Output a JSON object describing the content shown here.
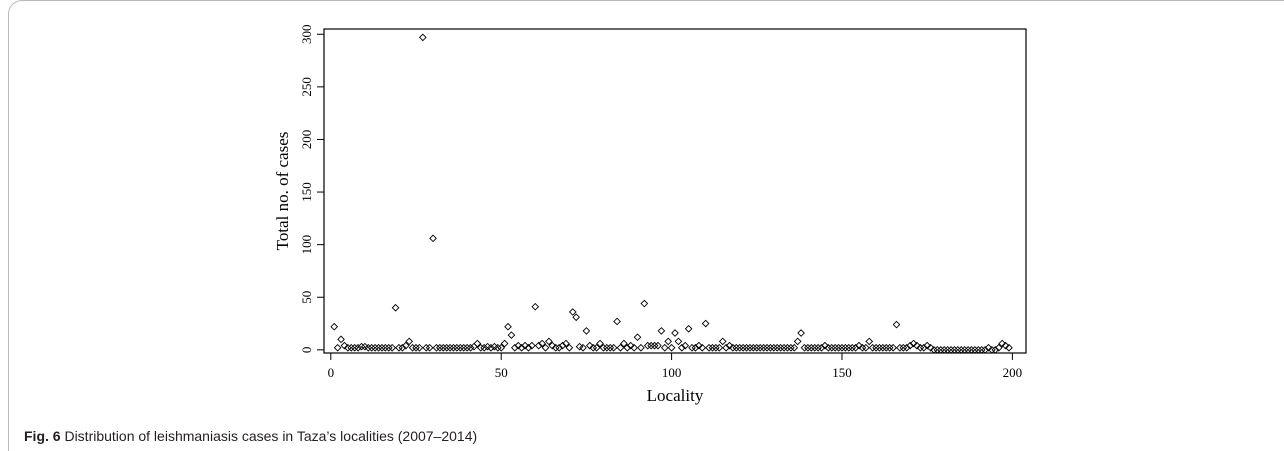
{
  "caption": {
    "label": "Fig. 6",
    "text": "Distribution of leishmaniasis cases in Taza’s localities (2007–2014)"
  },
  "chart_data": {
    "type": "scatter",
    "marker": "diamond",
    "xlabel": "Locality",
    "ylabel": "Total no. of cases",
    "xlim": [
      -2,
      204
    ],
    "ylim": [
      -3,
      305
    ],
    "xticks": [
      0,
      50,
      100,
      150,
      200
    ],
    "yticks": [
      0,
      50,
      100,
      150,
      200,
      250,
      300
    ],
    "grid": false,
    "points": [
      [
        1,
        22
      ],
      [
        2,
        2
      ],
      [
        3,
        10
      ],
      [
        4,
        4
      ],
      [
        5,
        2
      ],
      [
        6,
        2
      ],
      [
        7,
        2
      ],
      [
        8,
        2
      ],
      [
        9,
        3
      ],
      [
        10,
        3
      ],
      [
        11,
        2
      ],
      [
        12,
        2
      ],
      [
        13,
        2
      ],
      [
        14,
        2
      ],
      [
        15,
        2
      ],
      [
        16,
        2
      ],
      [
        17,
        2
      ],
      [
        18,
        2
      ],
      [
        19,
        40
      ],
      [
        20,
        2
      ],
      [
        21,
        2
      ],
      [
        22,
        4
      ],
      [
        23,
        8
      ],
      [
        24,
        2
      ],
      [
        25,
        2
      ],
      [
        26,
        2
      ],
      [
        27,
        297
      ],
      [
        28,
        2
      ],
      [
        29,
        2
      ],
      [
        30,
        106
      ],
      [
        31,
        2
      ],
      [
        32,
        2
      ],
      [
        33,
        2
      ],
      [
        34,
        2
      ],
      [
        35,
        2
      ],
      [
        36,
        2
      ],
      [
        37,
        2
      ],
      [
        38,
        2
      ],
      [
        39,
        2
      ],
      [
        40,
        2
      ],
      [
        41,
        2
      ],
      [
        42,
        3
      ],
      [
        43,
        6
      ],
      [
        44,
        2
      ],
      [
        45,
        2
      ],
      [
        46,
        3
      ],
      [
        47,
        2
      ],
      [
        48,
        3
      ],
      [
        49,
        2
      ],
      [
        50,
        2
      ],
      [
        51,
        6
      ],
      [
        52,
        22
      ],
      [
        53,
        14
      ],
      [
        54,
        2
      ],
      [
        55,
        4
      ],
      [
        56,
        2
      ],
      [
        57,
        4
      ],
      [
        58,
        2
      ],
      [
        59,
        4
      ],
      [
        60,
        41
      ],
      [
        61,
        4
      ],
      [
        62,
        6
      ],
      [
        63,
        2
      ],
      [
        64,
        8
      ],
      [
        65,
        4
      ],
      [
        66,
        2
      ],
      [
        67,
        2
      ],
      [
        68,
        4
      ],
      [
        69,
        6
      ],
      [
        70,
        2
      ],
      [
        71,
        36
      ],
      [
        72,
        31
      ],
      [
        73,
        3
      ],
      [
        74,
        2
      ],
      [
        75,
        18
      ],
      [
        76,
        4
      ],
      [
        77,
        2
      ],
      [
        78,
        2
      ],
      [
        79,
        6
      ],
      [
        80,
        2
      ],
      [
        81,
        2
      ],
      [
        82,
        2
      ],
      [
        83,
        2
      ],
      [
        84,
        27
      ],
      [
        85,
        2
      ],
      [
        86,
        6
      ],
      [
        87,
        2
      ],
      [
        88,
        4
      ],
      [
        89,
        2
      ],
      [
        90,
        12
      ],
      [
        91,
        2
      ],
      [
        92,
        44
      ],
      [
        93,
        4
      ],
      [
        94,
        4
      ],
      [
        95,
        4
      ],
      [
        96,
        4
      ],
      [
        97,
        18
      ],
      [
        98,
        2
      ],
      [
        99,
        8
      ],
      [
        100,
        2
      ],
      [
        101,
        16
      ],
      [
        102,
        8
      ],
      [
        103,
        2
      ],
      [
        104,
        4
      ],
      [
        105,
        20
      ],
      [
        106,
        2
      ],
      [
        107,
        2
      ],
      [
        108,
        4
      ],
      [
        109,
        2
      ],
      [
        110,
        25
      ],
      [
        111,
        2
      ],
      [
        112,
        2
      ],
      [
        113,
        2
      ],
      [
        114,
        2
      ],
      [
        115,
        8
      ],
      [
        116,
        2
      ],
      [
        117,
        4
      ],
      [
        118,
        2
      ],
      [
        119,
        2
      ],
      [
        120,
        2
      ],
      [
        121,
        2
      ],
      [
        122,
        2
      ],
      [
        123,
        2
      ],
      [
        124,
        2
      ],
      [
        125,
        2
      ],
      [
        126,
        2
      ],
      [
        127,
        2
      ],
      [
        128,
        2
      ],
      [
        129,
        2
      ],
      [
        130,
        2
      ],
      [
        131,
        2
      ],
      [
        132,
        2
      ],
      [
        133,
        2
      ],
      [
        134,
        2
      ],
      [
        135,
        2
      ],
      [
        136,
        2
      ],
      [
        137,
        8
      ],
      [
        138,
        16
      ],
      [
        139,
        2
      ],
      [
        140,
        2
      ],
      [
        141,
        2
      ],
      [
        142,
        2
      ],
      [
        143,
        2
      ],
      [
        144,
        2
      ],
      [
        145,
        4
      ],
      [
        146,
        2
      ],
      [
        147,
        2
      ],
      [
        148,
        2
      ],
      [
        149,
        2
      ],
      [
        150,
        2
      ],
      [
        151,
        2
      ],
      [
        152,
        2
      ],
      [
        153,
        2
      ],
      [
        154,
        2
      ],
      [
        155,
        4
      ],
      [
        156,
        2
      ],
      [
        157,
        2
      ],
      [
        158,
        8
      ],
      [
        159,
        2
      ],
      [
        160,
        2
      ],
      [
        161,
        2
      ],
      [
        162,
        2
      ],
      [
        163,
        2
      ],
      [
        164,
        2
      ],
      [
        165,
        2
      ],
      [
        166,
        24
      ],
      [
        167,
        2
      ],
      [
        168,
        2
      ],
      [
        169,
        2
      ],
      [
        170,
        4
      ],
      [
        171,
        6
      ],
      [
        172,
        4
      ],
      [
        173,
        2
      ],
      [
        174,
        2
      ],
      [
        175,
        4
      ],
      [
        176,
        2
      ],
      [
        177,
        0
      ],
      [
        178,
        0
      ],
      [
        179,
        0
      ],
      [
        180,
        0
      ],
      [
        181,
        0
      ],
      [
        182,
        0
      ],
      [
        183,
        0
      ],
      [
        184,
        0
      ],
      [
        185,
        0
      ],
      [
        186,
        0
      ],
      [
        187,
        0
      ],
      [
        188,
        0
      ],
      [
        189,
        0
      ],
      [
        190,
        0
      ],
      [
        191,
        0
      ],
      [
        192,
        0
      ],
      [
        193,
        2
      ],
      [
        194,
        0
      ],
      [
        195,
        0
      ],
      [
        196,
        2
      ],
      [
        197,
        6
      ],
      [
        198,
        4
      ],
      [
        199,
        2
      ]
    ]
  }
}
